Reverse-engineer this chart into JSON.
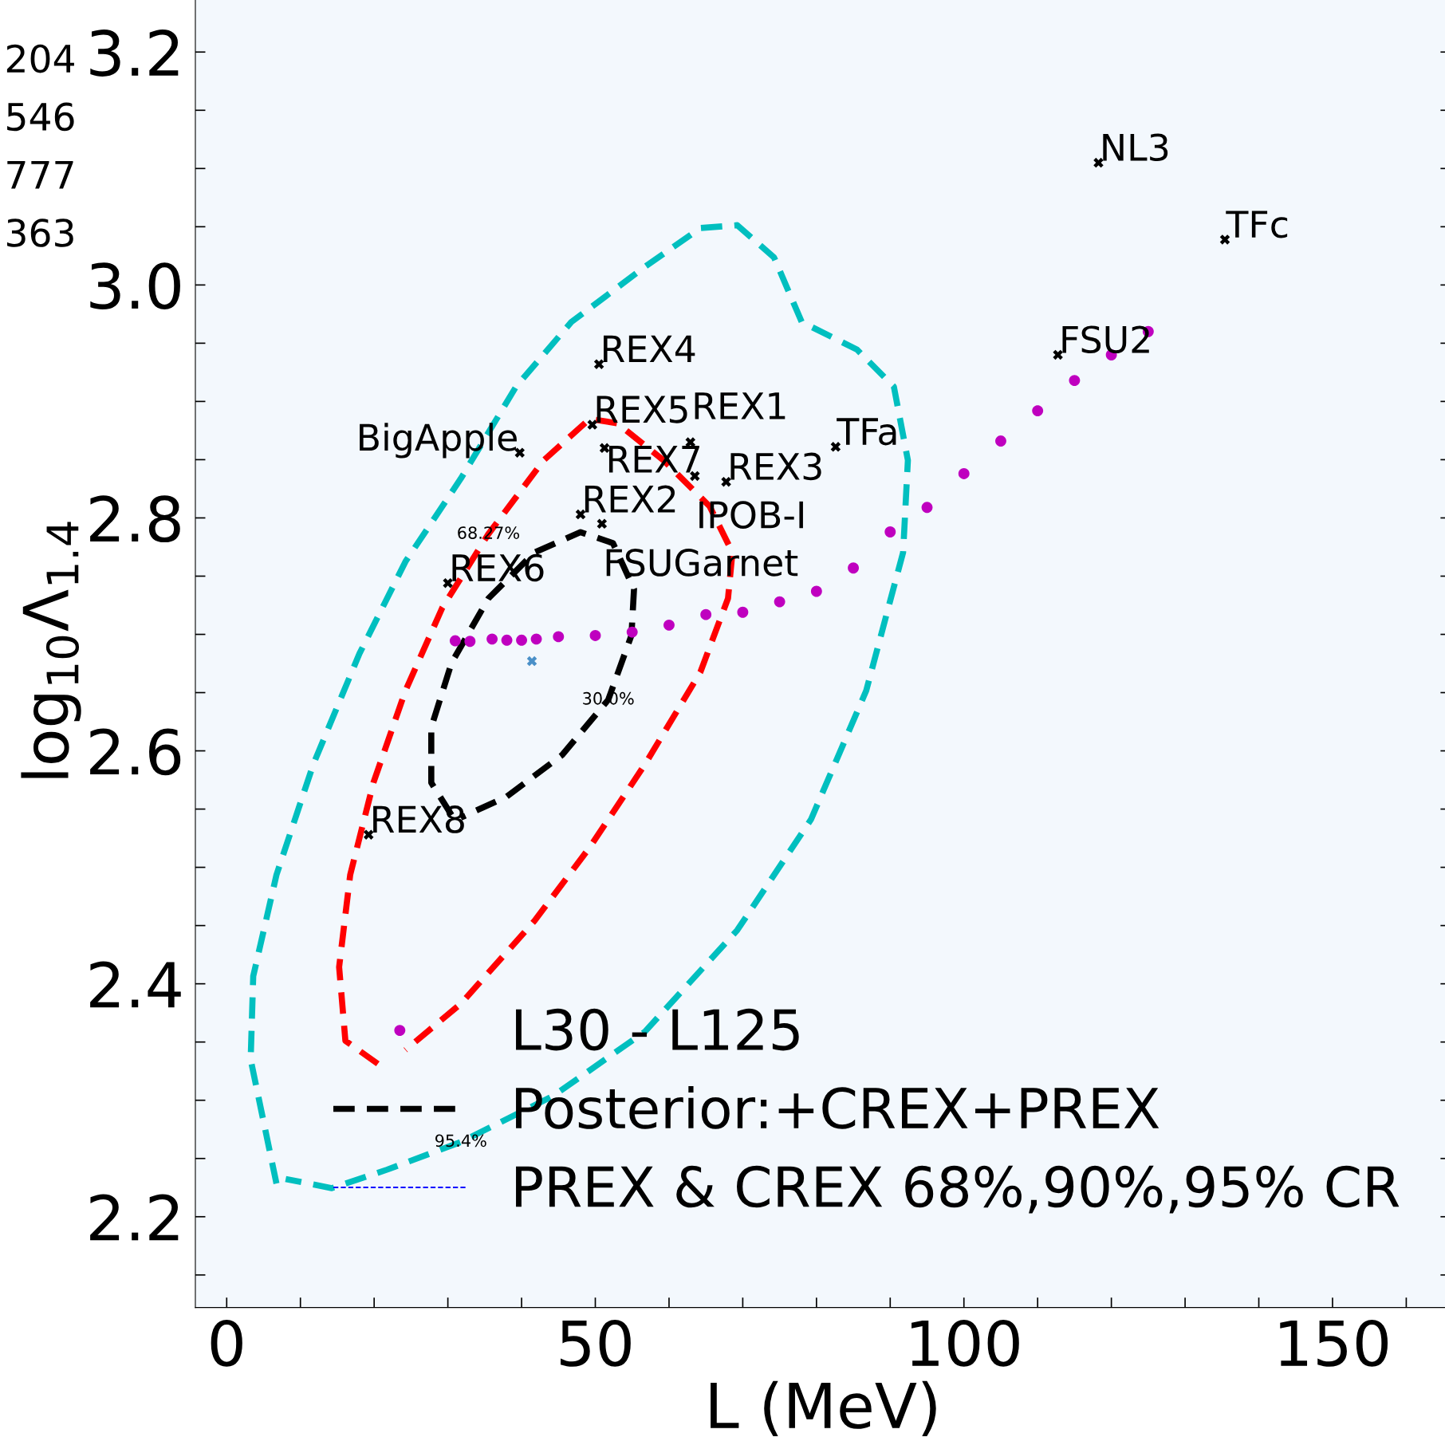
{
  "chart_data": {
    "type": "scatter",
    "xlabel": "L (MeV)",
    "ylabel": "log$_{10}$Λ$_{1.4}$",
    "xlim": [
      -4.25,
      166
    ],
    "ylim": [
      2.122,
      3.25
    ],
    "xticks": [
      0,
      {
        "value": 10,
        "label": null
      },
      {
        "value": 20,
        "label": null
      },
      {
        "value": 30,
        "label": null
      },
      {
        "value": 40,
        "label": null
      },
      50,
      {
        "value": 60,
        "label": null
      },
      {
        "value": 70,
        "label": null
      },
      {
        "value": 80,
        "label": null
      },
      {
        "value": 90,
        "label": null
      },
      100,
      {
        "value": 110,
        "label": null
      },
      {
        "value": 120,
        "label": null
      },
      {
        "value": 130,
        "label": null
      },
      {
        "value": 140,
        "label": null
      },
      150,
      {
        "value": 160,
        "label": null
      }
    ],
    "yticks": [
      {
        "value": 2.15,
        "label": null
      },
      2.2,
      {
        "value": 2.25,
        "label": null
      },
      {
        "value": 2.3,
        "label": null
      },
      {
        "value": 2.35,
        "label": null
      },
      2.4,
      {
        "value": 2.45,
        "label": null
      },
      {
        "value": 2.5,
        "label": null
      },
      {
        "value": 2.55,
        "label": null
      },
      2.6,
      {
        "value": 2.65,
        "label": null
      },
      {
        "value": 2.7,
        "label": null
      },
      {
        "value": 2.75,
        "label": null
      },
      2.8,
      {
        "value": 2.85,
        "label": null
      },
      {
        "value": 2.9,
        "label": null
      },
      {
        "value": 2.95,
        "label": null
      },
      {
        "value": 3,
        "label": "3.0"
      },
      {
        "value": 3.05,
        "label": null
      },
      {
        "value": 3.1,
        "label": null
      },
      {
        "value": 3.15,
        "label": null
      },
      3.2
    ],
    "grid": false,
    "legend": "bottom",
    "series": [
      {
        "type": "line",
        "color": "#00bfbf",
        "line_style": "dashed",
        "x": [
          6.75,
          3.25,
          3.6,
          6.75,
          11.75,
          18.0,
          24.25,
          31.75,
          39.25,
          46.75,
          56.75,
          64.25,
          69.25,
          74.25,
          78.0,
          85.5,
          90.5,
          92.4,
          91.75,
          86.75,
          79.25,
          69.25,
          56.75,
          44.25,
          31.75,
          21.75,
          14.25,
          8.0
        ],
        "values": [
          2.2285,
          2.335,
          2.4065,
          2.4935,
          2.5885,
          2.6834,
          2.7625,
          2.8337,
          2.9127,
          2.9682,
          3.0157,
          3.0489,
          3.0513,
          3.0236,
          2.9682,
          2.9445,
          2.9127,
          2.8495,
          2.7704,
          2.6517,
          2.541,
          2.446,
          2.359,
          2.3036,
          2.2641,
          2.2404,
          2.2245,
          2.2324
        ]
      },
      {
        "type": "line",
        "color": "#ff0000",
        "line_style": "dashed",
        "x": [
          20.5,
          16.1,
          15.25,
          16.75,
          19.9,
          24.25,
          29.25,
          35.5,
          43.0,
          49.25,
          53.0,
          59.25,
          65.5,
          68.6,
          68.0,
          64.25,
          56.75,
          49.25,
          41.75,
          31.75,
          24.25
        ],
        "values": [
          2.3313,
          2.3511,
          2.4144,
          2.4935,
          2.5726,
          2.6517,
          2.7229,
          2.7862,
          2.8495,
          2.8851,
          2.8812,
          2.8495,
          2.81,
          2.7704,
          2.7309,
          2.6676,
          2.5885,
          2.5172,
          2.454,
          2.3828,
          2.3432
        ]
      },
      {
        "type": "line",
        "name": "Posterior:+CREX+PREX",
        "color": "#000000",
        "line_style": "dashed",
        "x": [
          30.5,
          27.75,
          27.75,
          30.5,
          35.5,
          41.75,
          48.0,
          52.4,
          55.25,
          54.9,
          51.75,
          45.5,
          38.0,
          31.75
        ],
        "values": [
          2.5449,
          2.5726,
          2.6201,
          2.6755,
          2.7309,
          2.7704,
          2.7878,
          2.7783,
          2.7388,
          2.6992,
          2.6438,
          2.5964,
          2.5608,
          2.5426
        ]
      },
      {
        "type": "line",
        "name": "PREX & CREX 68%,90%,95% CR",
        "color": "#0000ff",
        "line_style": "dashed"
      },
      {
        "name": "L30 - L125",
        "color": "#bf00bf",
        "marker": "circle",
        "x": [
          31,
          33,
          36,
          38,
          40,
          42,
          45,
          50,
          55,
          60,
          65,
          70,
          75,
          80,
          85,
          90,
          95,
          100,
          105,
          110,
          115,
          120,
          125
        ],
        "values": [
          2.6945,
          2.694,
          2.696,
          2.695,
          2.695,
          2.696,
          2.698,
          2.699,
          2.702,
          2.708,
          2.717,
          2.719,
          2.728,
          2.737,
          2.757,
          2.788,
          2.809,
          2.838,
          2.866,
          2.892,
          2.918,
          2.94,
          2.96
        ]
      },
      {
        "color": "#000000",
        "marker": "cross",
        "x": [
          118.25,
          135.4,
          112.75,
          50.5,
          49.6,
          39.75,
          51.25,
          62.9,
          63.5,
          67.75,
          82.6,
          48.0,
          50.9,
          30.0,
          19.25
        ],
        "values": [
          3.105,
          3.039,
          2.94,
          2.932,
          2.88,
          2.856,
          2.86,
          2.865,
          2.836,
          2.831,
          2.861,
          2.803,
          2.795,
          2.744,
          2.528
        ],
        "value_labels": [
          "NL3",
          "TFc",
          "FSU2",
          "REX4",
          "REX5",
          "BigApple",
          "REX7",
          "REX1",
          "IPOB-I",
          "REX3",
          "TFa",
          "REX2",
          "FSUGarnet",
          "REX6",
          "REX8"
        ]
      },
      {
        "color": "#4a90c8",
        "marker": "cross",
        "x": [
          41.4
        ],
        "values": [
          2.677
        ]
      }
    ],
    "annotations": [
      "204",
      "546",
      "777",
      "363",
      {
        "text": "30.0%",
        "x": 51.75,
        "y": 2.6438
      },
      {
        "text": "68.27%",
        "x": 35.5,
        "y": 2.786
      },
      {
        "text": "95.4%",
        "x": 31.75,
        "y": 2.2641
      }
    ]
  }
}
